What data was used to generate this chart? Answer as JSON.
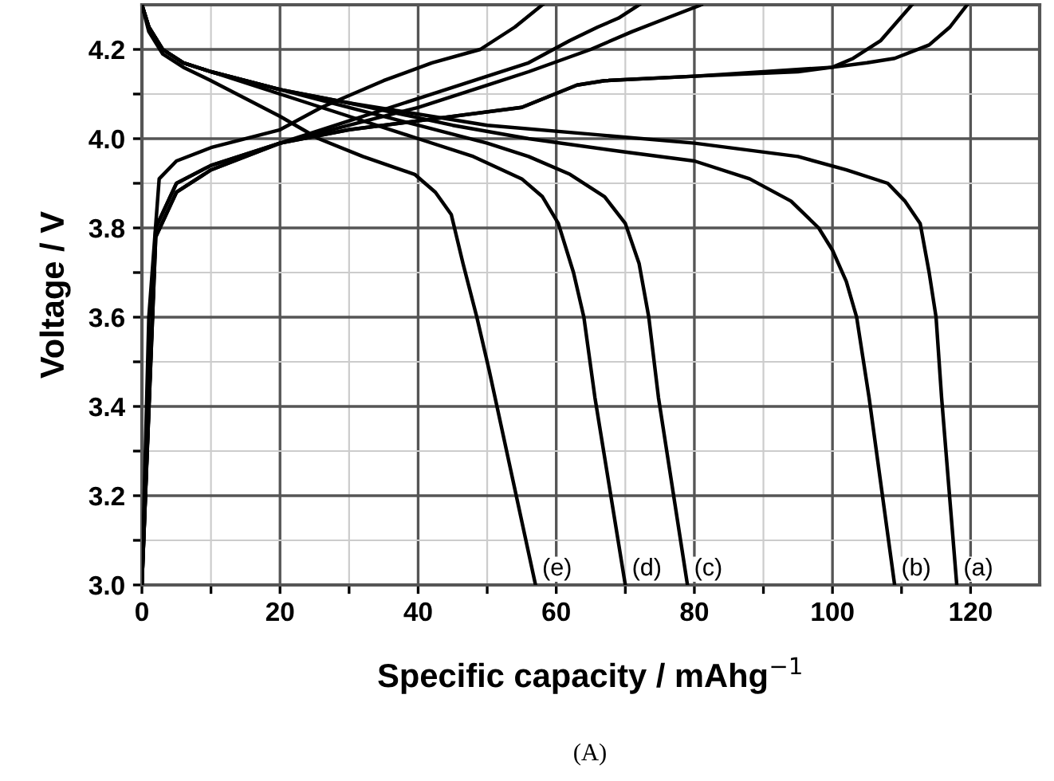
{
  "chart_data": {
    "type": "line",
    "xlabel": "Specific capacity / mAhg$^{−1}$",
    "ylabel": "Voltage / V",
    "xlim": [
      0,
      130
    ],
    "ylim": [
      3.0,
      4.3
    ],
    "xticks": [
      0,
      {
        "value": 10,
        "label": null
      },
      20,
      {
        "value": 30,
        "label": null
      },
      40,
      {
        "value": 50,
        "label": null
      },
      60,
      {
        "value": 70,
        "label": null
      },
      80,
      {
        "value": 90,
        "label": null
      },
      100,
      {
        "value": 110,
        "label": null
      },
      120
    ],
    "yticks": [
      {
        "value": 3.0,
        "label": "3.0"
      },
      {
        "value": 3.1,
        "label": null
      },
      3.2,
      {
        "value": 3.3,
        "label": null
      },
      3.4,
      {
        "value": 3.5,
        "label": null
      },
      3.6,
      {
        "value": 3.7,
        "label": null
      },
      3.8,
      {
        "value": 3.9,
        "label": null
      },
      {
        "value": 4.0,
        "label": "4.0"
      },
      {
        "value": 4.1,
        "label": null
      },
      4.2
    ],
    "grid": true,
    "legend": false,
    "marker": "none",
    "line_style": "solid",
    "series": [
      {
        "color": "#000000",
        "x": [
          0,
          2,
          5,
          10,
          20,
          30,
          40,
          55,
          63,
          67,
          80,
          100,
          105,
          109,
          114,
          117,
          119.5
        ],
        "values": [
          3.0,
          3.8,
          3.9,
          3.94,
          3.99,
          4.02,
          4.04,
          4.07,
          4.12,
          4.13,
          4.14,
          4.16,
          4.17,
          4.18,
          4.21,
          4.25,
          4.3
        ]
      },
      {
        "color": "#000000",
        "x": [
          0,
          2,
          5,
          10,
          20,
          30,
          40,
          55,
          63,
          67,
          80,
          95,
          100,
          103,
          107,
          111.5
        ],
        "values": [
          3.0,
          3.8,
          3.9,
          3.94,
          3.99,
          4.02,
          4.04,
          4.07,
          4.12,
          4.13,
          4.14,
          4.15,
          4.16,
          4.18,
          4.22,
          4.3
        ]
      },
      {
        "color": "#000000",
        "x": [
          0,
          2,
          5,
          10,
          20,
          30,
          40,
          50,
          56,
          65,
          71,
          76,
          81
        ],
        "values": [
          3.0,
          3.78,
          3.88,
          3.93,
          3.99,
          4.03,
          4.07,
          4.12,
          4.15,
          4.2,
          4.24,
          4.27,
          4.3
        ]
      },
      {
        "color": "#000000",
        "x": [
          0,
          2,
          5,
          10,
          20,
          30,
          40,
          50,
          56,
          62,
          66,
          69,
          72
        ],
        "values": [
          3.0,
          3.78,
          3.88,
          3.93,
          3.99,
          4.04,
          4.09,
          4.14,
          4.17,
          4.22,
          4.25,
          4.27,
          4.3
        ]
      },
      {
        "color": "#000000",
        "x": [
          0,
          1,
          2.5,
          5,
          10,
          20,
          26,
          35,
          42,
          49,
          54,
          58
        ],
        "values": [
          3.0,
          3.6,
          3.91,
          3.95,
          3.98,
          4.02,
          4.07,
          4.13,
          4.17,
          4.2,
          4.25,
          4.3
        ]
      },
      {
        "color": "#000000",
        "x": [
          0,
          1,
          3,
          6,
          10,
          20,
          30,
          50,
          65,
          80,
          95,
          102,
          108,
          110.5,
          112.7,
          114,
          115,
          115.8,
          118
        ],
        "values": [
          4.3,
          4.25,
          4.2,
          4.17,
          4.15,
          4.11,
          4.08,
          4.03,
          4.01,
          3.99,
          3.96,
          3.93,
          3.9,
          3.86,
          3.81,
          3.7,
          3.6,
          3.42,
          3.0
        ]
      },
      {
        "color": "#000000",
        "x": [
          0,
          1,
          3,
          6,
          10,
          20,
          30,
          45,
          56,
          70,
          80,
          88,
          94,
          98,
          100,
          102,
          103.5,
          105.3,
          109
        ],
        "values": [
          4.3,
          4.25,
          4.2,
          4.17,
          4.15,
          4.11,
          4.08,
          4.03,
          4.0,
          3.97,
          3.95,
          3.91,
          3.86,
          3.8,
          3.75,
          3.68,
          3.6,
          3.42,
          3.0
        ]
      },
      {
        "color": "#000000",
        "x": [
          0,
          1,
          3,
          6,
          10,
          20,
          30,
          40,
          50,
          56,
          62,
          67,
          70,
          72,
          73.4,
          74.8,
          79
        ],
        "values": [
          4.3,
          4.25,
          4.2,
          4.17,
          4.15,
          4.11,
          4.07,
          4.03,
          3.99,
          3.96,
          3.92,
          3.87,
          3.81,
          3.72,
          3.6,
          3.42,
          3.0
        ]
      },
      {
        "color": "#000000",
        "x": [
          0,
          1,
          3,
          6,
          10,
          20,
          30,
          40,
          48,
          55,
          58,
          60.3,
          62.5,
          64,
          65.6,
          70
        ],
        "values": [
          4.3,
          4.25,
          4.2,
          4.17,
          4.15,
          4.1,
          4.05,
          4.0,
          3.96,
          3.91,
          3.87,
          3.81,
          3.7,
          3.6,
          3.42,
          3.0
        ]
      },
      {
        "color": "#000000",
        "x": [
          0,
          1,
          3,
          6,
          10,
          20,
          25.6,
          32,
          39.5,
          42.5,
          44.8,
          46.5,
          48.5,
          50.3,
          57
        ],
        "values": [
          4.3,
          4.24,
          4.19,
          4.16,
          4.13,
          4.05,
          4.0,
          3.96,
          3.92,
          3.88,
          3.83,
          3.72,
          3.6,
          3.48,
          3.0
        ]
      }
    ],
    "annotations": [
      {
        "text": "(a)",
        "x": 118,
        "y": 3.0
      },
      {
        "text": "(b)",
        "x": 109,
        "y": 3.0
      },
      {
        "text": "(c)",
        "x": 79,
        "y": 3.0
      },
      {
        "text": "(d)",
        "x": 70,
        "y": 3.0
      },
      {
        "text": "(e)",
        "x": 57,
        "y": 3.0
      },
      "(A)"
    ]
  }
}
